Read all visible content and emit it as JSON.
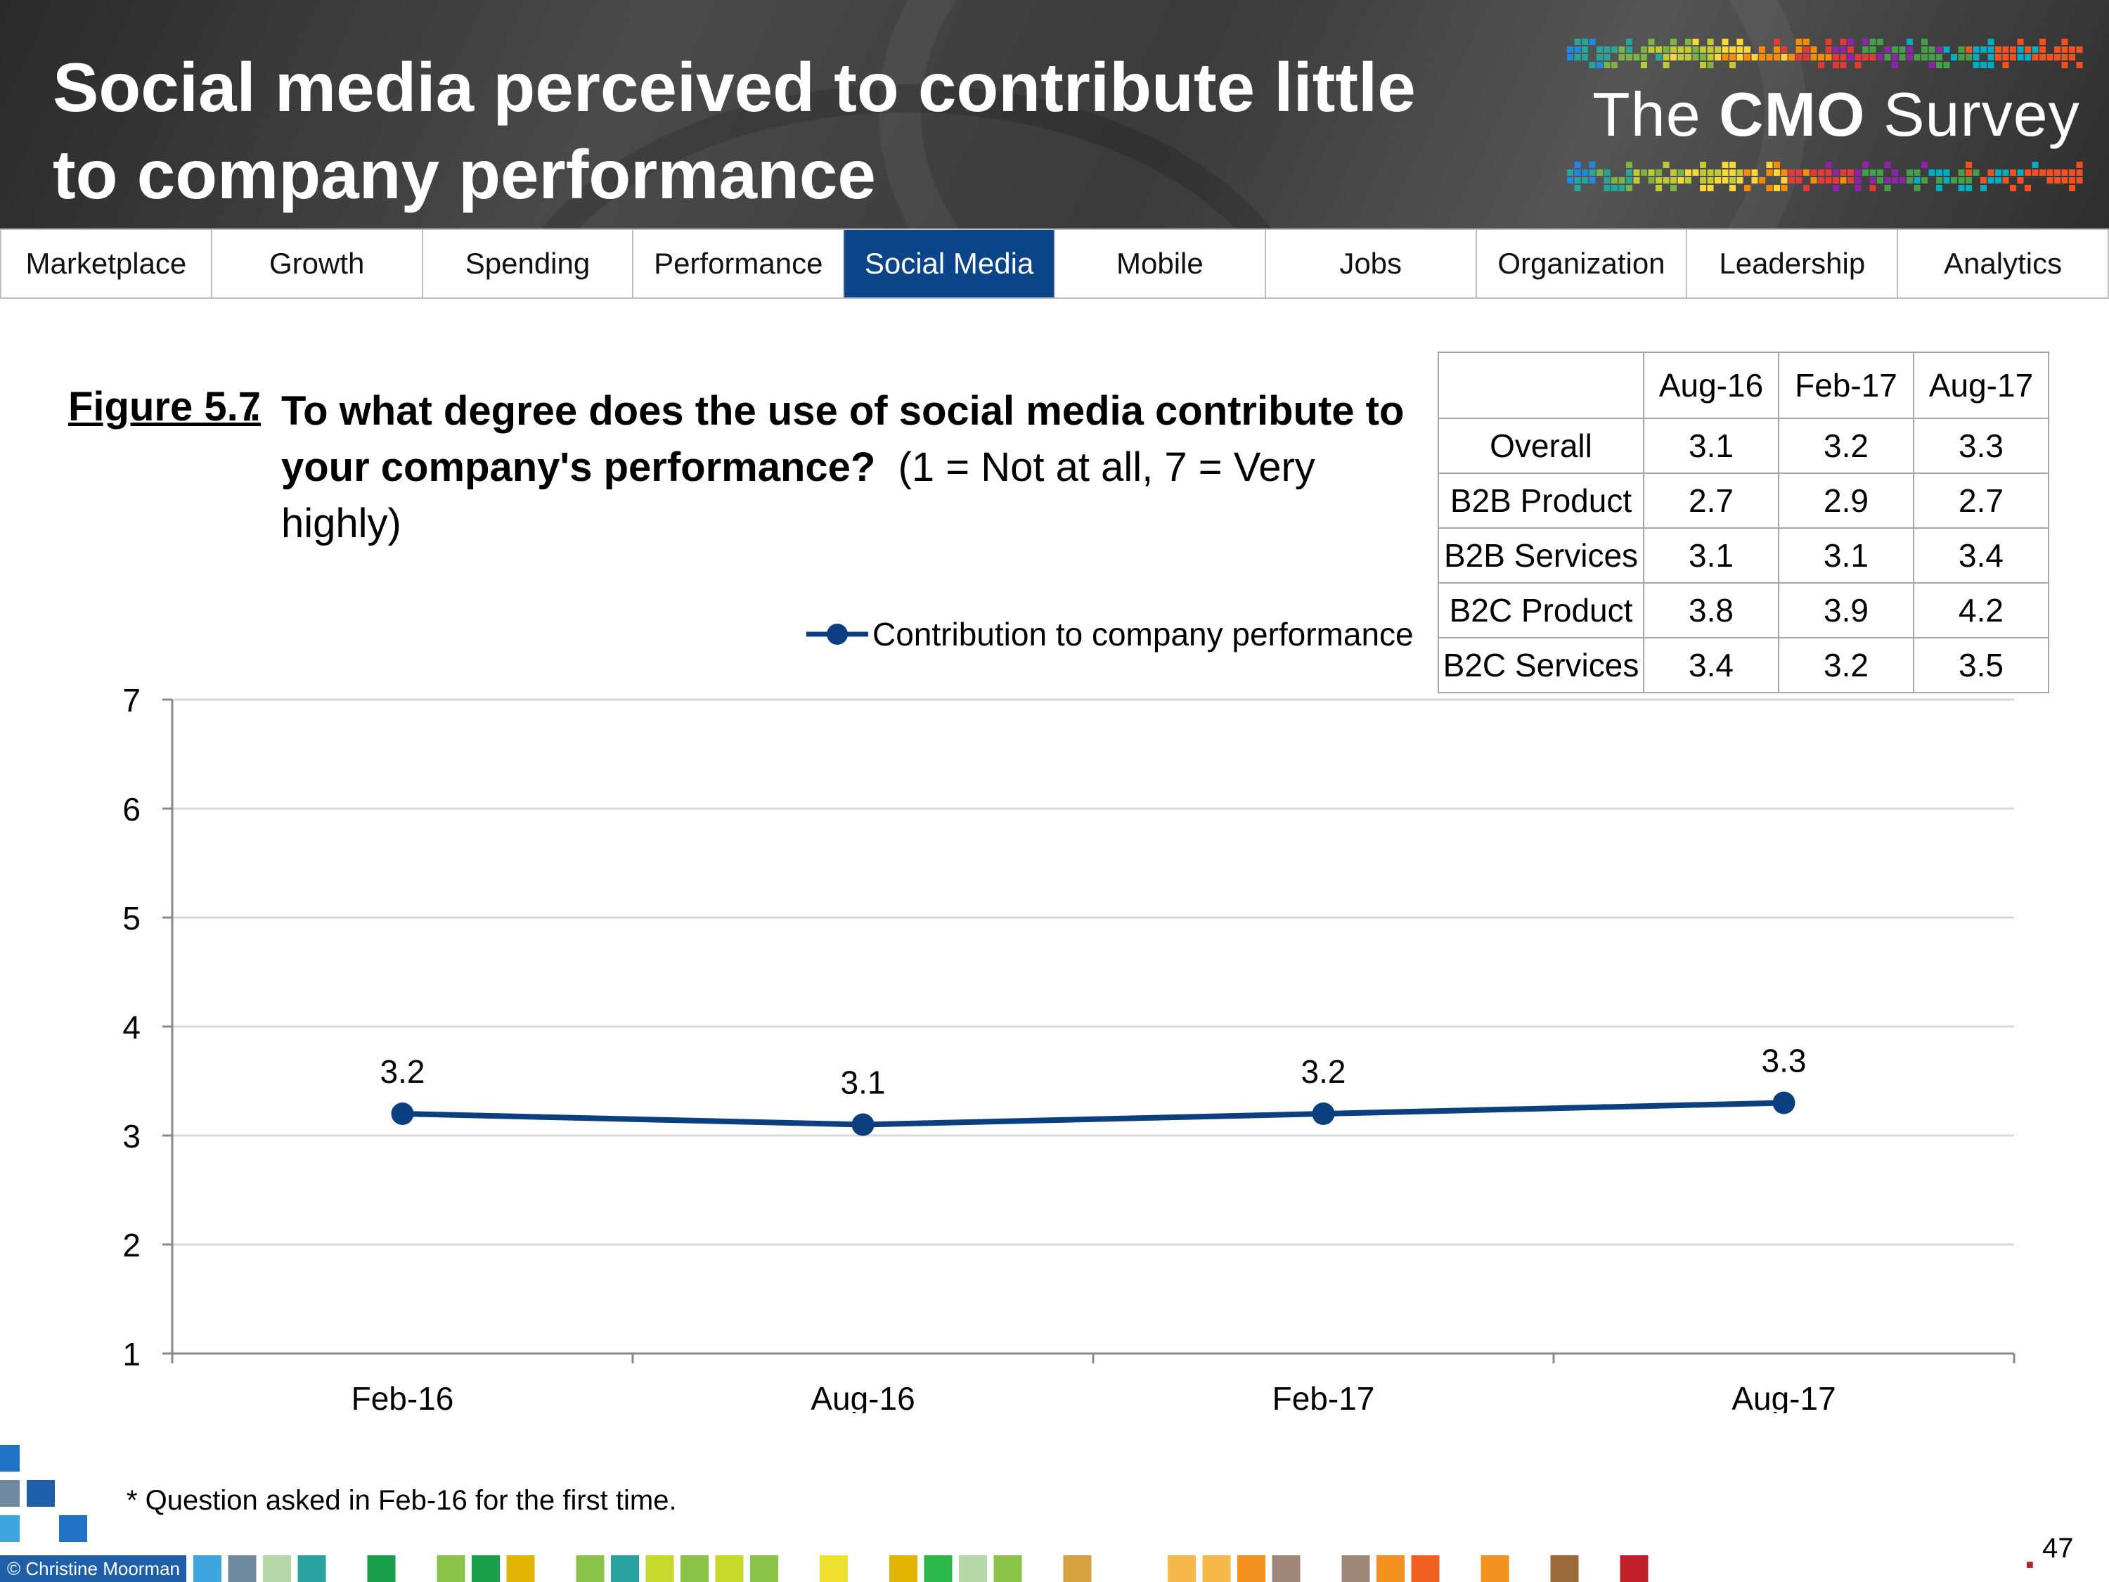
{
  "header": {
    "title": "Social media perceived to contribute little to company performance",
    "logo": {
      "prefix": "The",
      "brand": "CMO",
      "suffix": "Survey"
    }
  },
  "nav": {
    "tabs": [
      "Marketplace",
      "Growth",
      "Spending",
      "Performance",
      "Social Media",
      "Mobile",
      "Jobs",
      "Organization",
      "Leadership",
      "Analytics"
    ],
    "active": "Social Media"
  },
  "figure": {
    "label": "Figure 5.7",
    "question": "To what degree does the use of social media contribute to your company's performance?",
    "scale": "(1 = Not at all, 7 = Very highly)"
  },
  "table": {
    "columns": [
      "Aug-16",
      "Feb-17",
      "Aug-17"
    ],
    "rows": [
      {
        "label": "Overall",
        "values": [
          "3.1",
          "3.2",
          "3.3"
        ]
      },
      {
        "label": "B2B Product",
        "values": [
          "2.7",
          "2.9",
          "2.7"
        ]
      },
      {
        "label": "B2B Services",
        "values": [
          "3.1",
          "3.1",
          "3.4"
        ]
      },
      {
        "label": "B2C Product",
        "values": [
          "3.8",
          "3.9",
          "4.2"
        ]
      },
      {
        "label": "B2C Services",
        "values": [
          "3.4",
          "3.2",
          "3.5"
        ]
      }
    ]
  },
  "chart_data": {
    "type": "line",
    "categories": [
      "Feb-16",
      "Aug-16",
      "Feb-17",
      "Aug-17"
    ],
    "series": [
      {
        "name": "Contribution to company performance",
        "values": [
          3.2,
          3.1,
          3.2,
          3.3
        ]
      }
    ],
    "ylim": [
      1,
      7
    ],
    "yticks": [
      1,
      2,
      3,
      4,
      5,
      6,
      7
    ],
    "grid": true,
    "legend": "top-right",
    "title": "",
    "xlabel": "",
    "ylabel": ""
  },
  "colors": {
    "accent": "#0b4488",
    "line": "#0b3f80",
    "grid": "#d9d9d9"
  },
  "footnote": "* Question asked in Feb-16 for the first time.",
  "footer": {
    "copyright": "© Christine Moorman",
    "page_number": "47"
  }
}
